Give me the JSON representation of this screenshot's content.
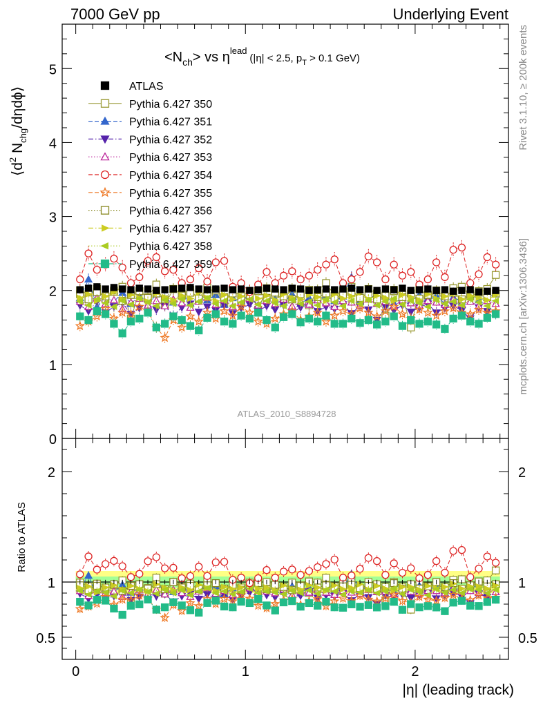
{
  "header": {
    "left": "7000 GeV pp",
    "right": "Underlying Event"
  },
  "side_labels": {
    "rivet": "Rivet 3.1.10, ≥ 200k events",
    "mcplots": "mcplots.cern.ch [arXiv:1306.3436]"
  },
  "chart_data": [
    {
      "type": "scatter",
      "title_main": "<N",
      "title_sub_ch": "ch",
      "title_vs": "> vs η",
      "title_sup": "lead",
      "title_cut": "(|η| < 2.5, p",
      "title_cut_sub": "T",
      "title_cut_end": " > 0.1 GeV)",
      "ylabel_parts": [
        "⟨d",
        "2",
        " N",
        "chg",
        "/dηdϕ⟩"
      ],
      "watermark": "ATLAS_2010_S8894728",
      "xlim": [
        -0.08,
        2.55
      ],
      "ylim": [
        0,
        5.6
      ],
      "yticks": [
        0,
        1,
        2,
        3,
        4,
        5
      ],
      "ytick_labels": [
        "0",
        "1",
        "2",
        "3",
        "4",
        "5"
      ],
      "legend_position": "top-left",
      "x": [
        0.025,
        0.075,
        0.125,
        0.175,
        0.225,
        0.275,
        0.325,
        0.375,
        0.425,
        0.475,
        0.525,
        0.575,
        0.625,
        0.675,
        0.725,
        0.775,
        0.825,
        0.875,
        0.925,
        0.975,
        1.025,
        1.075,
        1.125,
        1.175,
        1.225,
        1.275,
        1.325,
        1.375,
        1.425,
        1.475,
        1.525,
        1.575,
        1.625,
        1.675,
        1.725,
        1.775,
        1.825,
        1.875,
        1.925,
        1.975,
        2.025,
        2.075,
        2.125,
        2.175,
        2.225,
        2.275,
        2.325,
        2.375,
        2.425,
        2.475
      ],
      "series": [
        {
          "name": "ATLAS",
          "marker": "square-filled",
          "color": "#000000",
          "dash": "none",
          "values": [
            2.01,
            2.03,
            2.05,
            2.02,
            2.04,
            2.02,
            2.01,
            2.03,
            2.02,
            2.0,
            2.01,
            2.02,
            2.03,
            2.04,
            2.02,
            2.01,
            2.02,
            2.03,
            2.01,
            2.02,
            2.0,
            2.01,
            2.03,
            2.02,
            2.01,
            2.03,
            2.02,
            2.0,
            2.01,
            2.02,
            2.01,
            2.02,
            2.03,
            2.01,
            2.02,
            2.0,
            2.02,
            2.01,
            2.03,
            2.0,
            2.01,
            2.02,
            2.0,
            2.01,
            1.99,
            2.0,
            2.01,
            1.98,
            1.99,
            2.0
          ],
          "errors": 0.04
        },
        {
          "name": "Pythia 6.427 350",
          "marker": "square-open",
          "color": "#999933",
          "dash": "solid",
          "values": [
            2.0,
            1.95,
            2.02,
            1.88,
            1.98,
            2.05,
            1.62,
            1.99,
            1.91,
            2.08,
            1.8,
            2.02,
            1.95,
            2.01,
            1.88,
            2.04,
            1.97,
            1.83,
            2.0,
            1.92,
            1.99,
            1.74,
            2.03,
            1.95,
            1.88,
            2.02,
            1.96,
            1.8,
            2.0,
            2.1,
            1.93,
            1.99,
            2.05,
            1.85,
            2.02,
            1.96,
            1.66,
            2.01,
            1.94,
            1.5,
            2.02,
            1.93,
            1.97,
            1.88,
            2.03,
            2.05,
            1.92,
            1.97,
            2.02,
            2.21
          ],
          "errors": 0.08
        },
        {
          "name": "Pythia 6.427 351",
          "marker": "triangle-up-filled",
          "color": "#3366cc",
          "dash": "dashed",
          "values": [
            1.9,
            2.15,
            1.78,
            1.92,
            1.85,
            1.97,
            1.82,
            1.93,
            1.8,
            1.95,
            1.88,
            1.84,
            1.96,
            1.83,
            1.92,
            1.87,
            1.94,
            1.81,
            1.9,
            1.86,
            1.93,
            1.8,
            1.91,
            1.88,
            1.84,
            1.95,
            1.82,
            1.9,
            1.87,
            1.93,
            1.86,
            1.92,
            2.18,
            1.85,
            1.95,
            1.88,
            1.92,
            1.83,
            1.9,
            1.86,
            1.94,
            1.89,
            1.93,
            1.82,
            1.91,
            1.85,
            1.96,
            1.87,
            1.9,
            1.95
          ],
          "errors": 0.08
        },
        {
          "name": "Pythia 6.427 352",
          "marker": "triangle-down-filled",
          "color": "#5522aa",
          "dash": "dashdot",
          "values": [
            1.8,
            1.72,
            1.85,
            1.7,
            1.78,
            1.83,
            1.68,
            1.76,
            1.81,
            1.74,
            1.79,
            1.66,
            1.77,
            1.82,
            1.71,
            1.78,
            1.73,
            1.8,
            1.69,
            1.76,
            1.81,
            1.72,
            1.79,
            1.74,
            1.8,
            1.7,
            1.77,
            1.83,
            1.72,
            1.78,
            1.75,
            1.81,
            1.69,
            1.79,
            1.74,
            1.6,
            1.78,
            1.73,
            1.8,
            1.71,
            1.77,
            1.82,
            1.7,
            1.76,
            1.79,
            1.73,
            1.62,
            1.77,
            1.72,
            1.69
          ],
          "errors": 0.07
        },
        {
          "name": "Pythia 6.427 353",
          "marker": "triangle-up-open",
          "color": "#bb2299",
          "dash": "dotted",
          "values": [
            1.85,
            1.78,
            1.9,
            1.82,
            1.87,
            1.75,
            1.84,
            1.89,
            1.8,
            1.86,
            1.79,
            1.88,
            1.83,
            1.77,
            1.85,
            1.9,
            1.81,
            1.87,
            1.78,
            1.84,
            1.89,
            1.8,
            1.86,
            1.82,
            1.88,
            1.79,
            1.85,
            1.81,
            1.87,
            1.83,
            1.78,
            1.86,
            1.84,
            1.8,
            1.88,
            1.82,
            1.85,
            1.79,
            1.87,
            1.83,
            1.8,
            1.86,
            1.84,
            1.81,
            1.88,
            1.82,
            1.85,
            1.79,
            1.86,
            1.82
          ],
          "errors": 0.07
        },
        {
          "name": "Pythia 6.427 354",
          "marker": "circle-open",
          "color": "#dd2222",
          "dash": "dashed",
          "values": [
            2.15,
            2.5,
            2.28,
            2.35,
            2.43,
            2.31,
            2.1,
            2.18,
            2.4,
            2.45,
            2.26,
            2.28,
            2.1,
            2.15,
            2.3,
            2.12,
            2.38,
            2.4,
            2.05,
            2.1,
            1.98,
            2.08,
            2.25,
            2.1,
            2.2,
            2.26,
            2.15,
            2.2,
            2.28,
            2.35,
            2.42,
            2.1,
            2.15,
            2.25,
            2.46,
            2.38,
            2.15,
            2.35,
            2.2,
            2.25,
            2.08,
            2.15,
            2.38,
            2.18,
            2.55,
            2.58,
            2.1,
            2.22,
            2.45,
            2.35
          ],
          "errors": 0.1
        },
        {
          "name": "Pythia 6.427 355",
          "marker": "star-open",
          "color": "#ee7722",
          "dash": "dashed",
          "values": [
            1.52,
            1.58,
            1.65,
            1.75,
            1.62,
            1.7,
            1.68,
            1.78,
            1.72,
            1.5,
            1.36,
            1.6,
            1.5,
            1.65,
            1.58,
            1.7,
            1.62,
            1.72,
            1.66,
            1.78,
            1.7,
            1.58,
            1.55,
            1.62,
            1.68,
            1.72,
            1.6,
            1.65,
            1.7,
            1.58,
            1.66,
            1.72,
            1.68,
            1.76,
            1.7,
            1.65,
            1.72,
            1.78,
            1.68,
            1.62,
            1.74,
            1.7,
            1.66,
            1.72,
            1.76,
            1.7,
            1.68,
            1.74,
            1.7,
            1.72
          ],
          "errors": 0.08
        },
        {
          "name": "Pythia 6.427 356",
          "marker": "square-open",
          "color": "#888822",
          "dash": "dotted",
          "values": [
            1.95,
            1.88,
            1.98,
            1.92,
            2.0,
            1.86,
            1.94,
            1.99,
            1.9,
            1.96,
            1.88,
            2.02,
            1.93,
            1.97,
            1.89,
            1.95,
            2.0,
            1.91,
            1.96,
            1.88,
            1.94,
            1.99,
            1.9,
            1.97,
            1.92,
            1.88,
            1.95,
            2.01,
            1.91,
            1.96,
            1.89,
            1.94,
            1.98,
            1.9,
            1.95,
            1.88,
            1.93,
            1.99,
            1.91,
            1.96,
            1.89,
            1.94,
            2.0,
            1.92,
            1.97,
            1.88,
            1.95,
            1.99,
            1.91,
            1.96
          ],
          "errors": 0.07
        },
        {
          "name": "Pythia 6.427 357",
          "marker": "triangle-right",
          "color": "#cccc22",
          "dash": "dashdot",
          "values": [
            1.9,
            1.95,
            1.86,
            1.92,
            1.98,
            1.88,
            1.94,
            1.9,
            1.85,
            1.96,
            1.91,
            1.87,
            1.93,
            1.89,
            1.97,
            1.9,
            1.86,
            1.94,
            1.88,
            1.92,
            1.96,
            1.89,
            1.93,
            1.87,
            1.95,
            1.9,
            1.88,
            1.94,
            1.91,
            1.86,
            1.95,
            1.89,
            1.92,
            1.97,
            1.88,
            1.93,
            1.9,
            1.86,
            1.94,
            1.91,
            1.87,
            1.95,
            1.89,
            1.92,
            1.96,
            1.88,
            1.93,
            1.9,
            1.87,
            1.94
          ],
          "errors": 0.07
        },
        {
          "name": "Pythia 6.427 358",
          "marker": "triangle-left",
          "color": "#aacc22",
          "dash": "dotted",
          "values": [
            1.85,
            1.8,
            1.88,
            1.83,
            1.78,
            1.86,
            1.81,
            1.89,
            1.84,
            1.79,
            1.87,
            1.82,
            1.88,
            1.8,
            1.85,
            1.9,
            1.82,
            1.86,
            1.79,
            1.84,
            1.88,
            1.81,
            1.86,
            1.83,
            1.79,
            1.87,
            1.82,
            1.85,
            1.8,
            1.88,
            1.84,
            1.79,
            1.86,
            1.82,
            1.87,
            1.8,
            1.85,
            1.89,
            1.81,
            1.86,
            1.83,
            1.78,
            1.87,
            1.82,
            1.85,
            1.8,
            1.88,
            1.84,
            1.79,
            1.86
          ],
          "errors": 0.07
        },
        {
          "name": "Pythia 6.427 359",
          "marker": "square-filled",
          "color": "#22bb88",
          "dash": "dashdot",
          "values": [
            1.65,
            1.6,
            1.72,
            1.68,
            1.55,
            1.42,
            1.58,
            1.62,
            1.7,
            1.5,
            1.55,
            1.65,
            1.6,
            1.52,
            1.46,
            1.63,
            1.68,
            1.58,
            1.55,
            1.66,
            1.62,
            1.7,
            1.6,
            1.5,
            1.64,
            1.68,
            1.57,
            1.62,
            1.58,
            1.66,
            1.55,
            1.55,
            1.62,
            1.56,
            1.6,
            1.54,
            1.58,
            1.65,
            1.52,
            1.6,
            1.55,
            1.58,
            1.54,
            1.48,
            1.62,
            1.66,
            1.58,
            1.55,
            1.63,
            1.68
          ],
          "errors": 0.07
        }
      ]
    },
    {
      "type": "scatter",
      "ylabel": "Ratio to ATLAS",
      "xlabel": "|η| (leading track)",
      "xlim": [
        -0.08,
        2.55
      ],
      "ylim": [
        0.3,
        2.3
      ],
      "yticks": [
        0.5,
        1,
        2
      ],
      "ytick_labels": [
        "0.5",
        "1",
        "2"
      ],
      "xticks": [
        0,
        1,
        2
      ],
      "xtick_labels": [
        "0",
        "1",
        "2"
      ],
      "band_inner": 0.05,
      "band_outer": 0.1,
      "band_inner_color": "#99ff99",
      "band_outer_color": "#ffff66"
    }
  ]
}
